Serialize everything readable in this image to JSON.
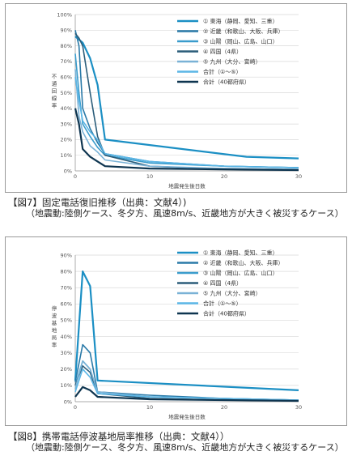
{
  "charts": [
    {
      "caption": "【図7】固定電話復旧推移（出典：文献4）)",
      "subcaption": "（地震動:陸側ケース、冬夕方、風速8m/s、近畿地方が大きく被災するケース）",
      "chart_data": {
        "type": "line",
        "xlabel": "地震発生後日数",
        "ylabel": "不通回線率",
        "xlim": [
          0,
          30
        ],
        "ylim": [
          0,
          100
        ],
        "xticks": [
          "0",
          "10",
          "20",
          "30"
        ],
        "yticks": [
          "0%",
          "10%",
          "20%",
          "30%",
          "40%",
          "50%",
          "60%",
          "70%",
          "80%",
          "90%",
          "100%"
        ],
        "grid": "horizontal",
        "legend_position": "right",
        "series": [
          {
            "name": "① 東海（静岡、愛知、三重）",
            "color": "#1b8fc4",
            "width": 2.2,
            "x": [
              0,
              1,
              2,
              3,
              4,
              23,
              30
            ],
            "y": [
              86,
              82,
              72,
              55,
              20,
              9,
              8
            ]
          },
          {
            "name": "② 近畿（和歌山、大阪、兵庫）",
            "color": "#2a7aa8",
            "width": 1.6,
            "x": [
              0,
              0.5,
              1,
              2,
              3,
              4,
              10,
              20,
              30
            ],
            "y": [
              90,
              80,
              40,
              27,
              18,
              11,
              6,
              3,
              2
            ]
          },
          {
            "name": "③ 山陽（岡山、広島、山口）",
            "color": "#3a9ccc",
            "width": 1.6,
            "x": [
              0,
              0.5,
              1,
              2,
              3,
              4,
              10,
              20,
              30
            ],
            "y": [
              75,
              50,
              30,
              22,
              15,
              10,
              5,
              3,
              2
            ]
          },
          {
            "name": "④ 四国（4県）",
            "color": "#2b5d7a",
            "width": 1.6,
            "x": [
              0,
              0.5,
              1,
              2,
              3,
              4,
              10,
              20,
              30
            ],
            "y": [
              88,
              85,
              80,
              50,
              22,
              10,
              3,
              1,
              0.5
            ]
          },
          {
            "name": "⑤ 九州（大分、宮崎）",
            "color": "#7ab2d6",
            "width": 1.6,
            "x": [
              0,
              0.5,
              1,
              2,
              3,
              4,
              10,
              20,
              30
            ],
            "y": [
              65,
              35,
              25,
              16,
              12,
              7,
              3,
              1.5,
              1
            ]
          },
          {
            "name": "合計（①〜⑤）",
            "color": "#5bb6e6",
            "width": 1.6,
            "x": [
              0,
              0.5,
              1,
              2,
              3,
              4,
              10,
              20,
              30
            ],
            "y": [
              60,
              45,
              32,
              25,
              20,
              11,
              6,
              3,
              2
            ]
          },
          {
            "name": "合計（40都府県）",
            "color": "#0e3550",
            "width": 2.2,
            "x": [
              0,
              0.5,
              1,
              2,
              3,
              4,
              10,
              20,
              30
            ],
            "y": [
              40,
              30,
              14,
              9,
              6,
              3,
              1.5,
              1,
              0.5
            ]
          }
        ]
      }
    },
    {
      "caption": "【図8】携帯電話停波基地局率推移（出典：文献4））",
      "subcaption": "（地震動:陸側ケース、冬夕方、風速8m/s、近畿地方が大きく被災するケース）",
      "chart_data": {
        "type": "line",
        "xlabel": "地震発生後日数",
        "ylabel": "停波基地局率",
        "xlim": [
          0,
          30
        ],
        "ylim": [
          0,
          90
        ],
        "xticks": [
          "0",
          "10",
          "20",
          "30"
        ],
        "yticks": [
          "0%",
          "10%",
          "20%",
          "30%",
          "40%",
          "50%",
          "60%",
          "70%",
          "80%",
          "90%"
        ],
        "grid": "horizontal",
        "legend_position": "right",
        "series": [
          {
            "name": "① 東海（静岡、愛知、三重）",
            "color": "#1b8fc4",
            "width": 2.2,
            "x": [
              0,
              1,
              2,
              3,
              30
            ],
            "y": [
              13,
              80,
              71,
              13,
              7
            ]
          },
          {
            "name": "② 近畿（和歌山、大阪、兵庫）",
            "color": "#2a7aa8",
            "width": 1.6,
            "x": [
              0,
              1,
              2,
              3,
              10,
              20,
              30
            ],
            "y": [
              12,
              35,
              30,
              6,
              4,
              2,
              1
            ]
          },
          {
            "name": "③ 山陽（岡山、広島、山口）",
            "color": "#3a9ccc",
            "width": 1.6,
            "x": [
              0,
              1,
              2,
              3,
              10,
              20,
              30
            ],
            "y": [
              10,
              25,
              20,
              5,
              3,
              2,
              1
            ]
          },
          {
            "name": "④ 四国（4県）",
            "color": "#2b5d7a",
            "width": 1.6,
            "x": [
              0,
              1,
              2,
              3,
              10,
              20,
              30
            ],
            "y": [
              10,
              22,
              18,
              5,
              2,
              1,
              0.5
            ]
          },
          {
            "name": "⑤ 九州（大分、宮崎）",
            "color": "#7ab2d6",
            "width": 1.6,
            "x": [
              0,
              1,
              2,
              3,
              10,
              20,
              30
            ],
            "y": [
              8,
              25,
              20,
              6,
              3,
              2,
              1
            ]
          },
          {
            "name": "合計（①〜⑤）",
            "color": "#5bb6e6",
            "width": 1.6,
            "x": [
              0,
              1,
              2,
              3,
              10,
              20,
              30
            ],
            "y": [
              6,
              20,
              15,
              5,
              3,
              2,
              1
            ]
          },
          {
            "name": "合計（40都府県）",
            "color": "#0e3550",
            "width": 2.2,
            "x": [
              0,
              1,
              2,
              3,
              10,
              20,
              30
            ],
            "y": [
              3,
              9,
              7,
              3,
              1.5,
              1,
              0.5
            ]
          }
        ]
      }
    }
  ]
}
